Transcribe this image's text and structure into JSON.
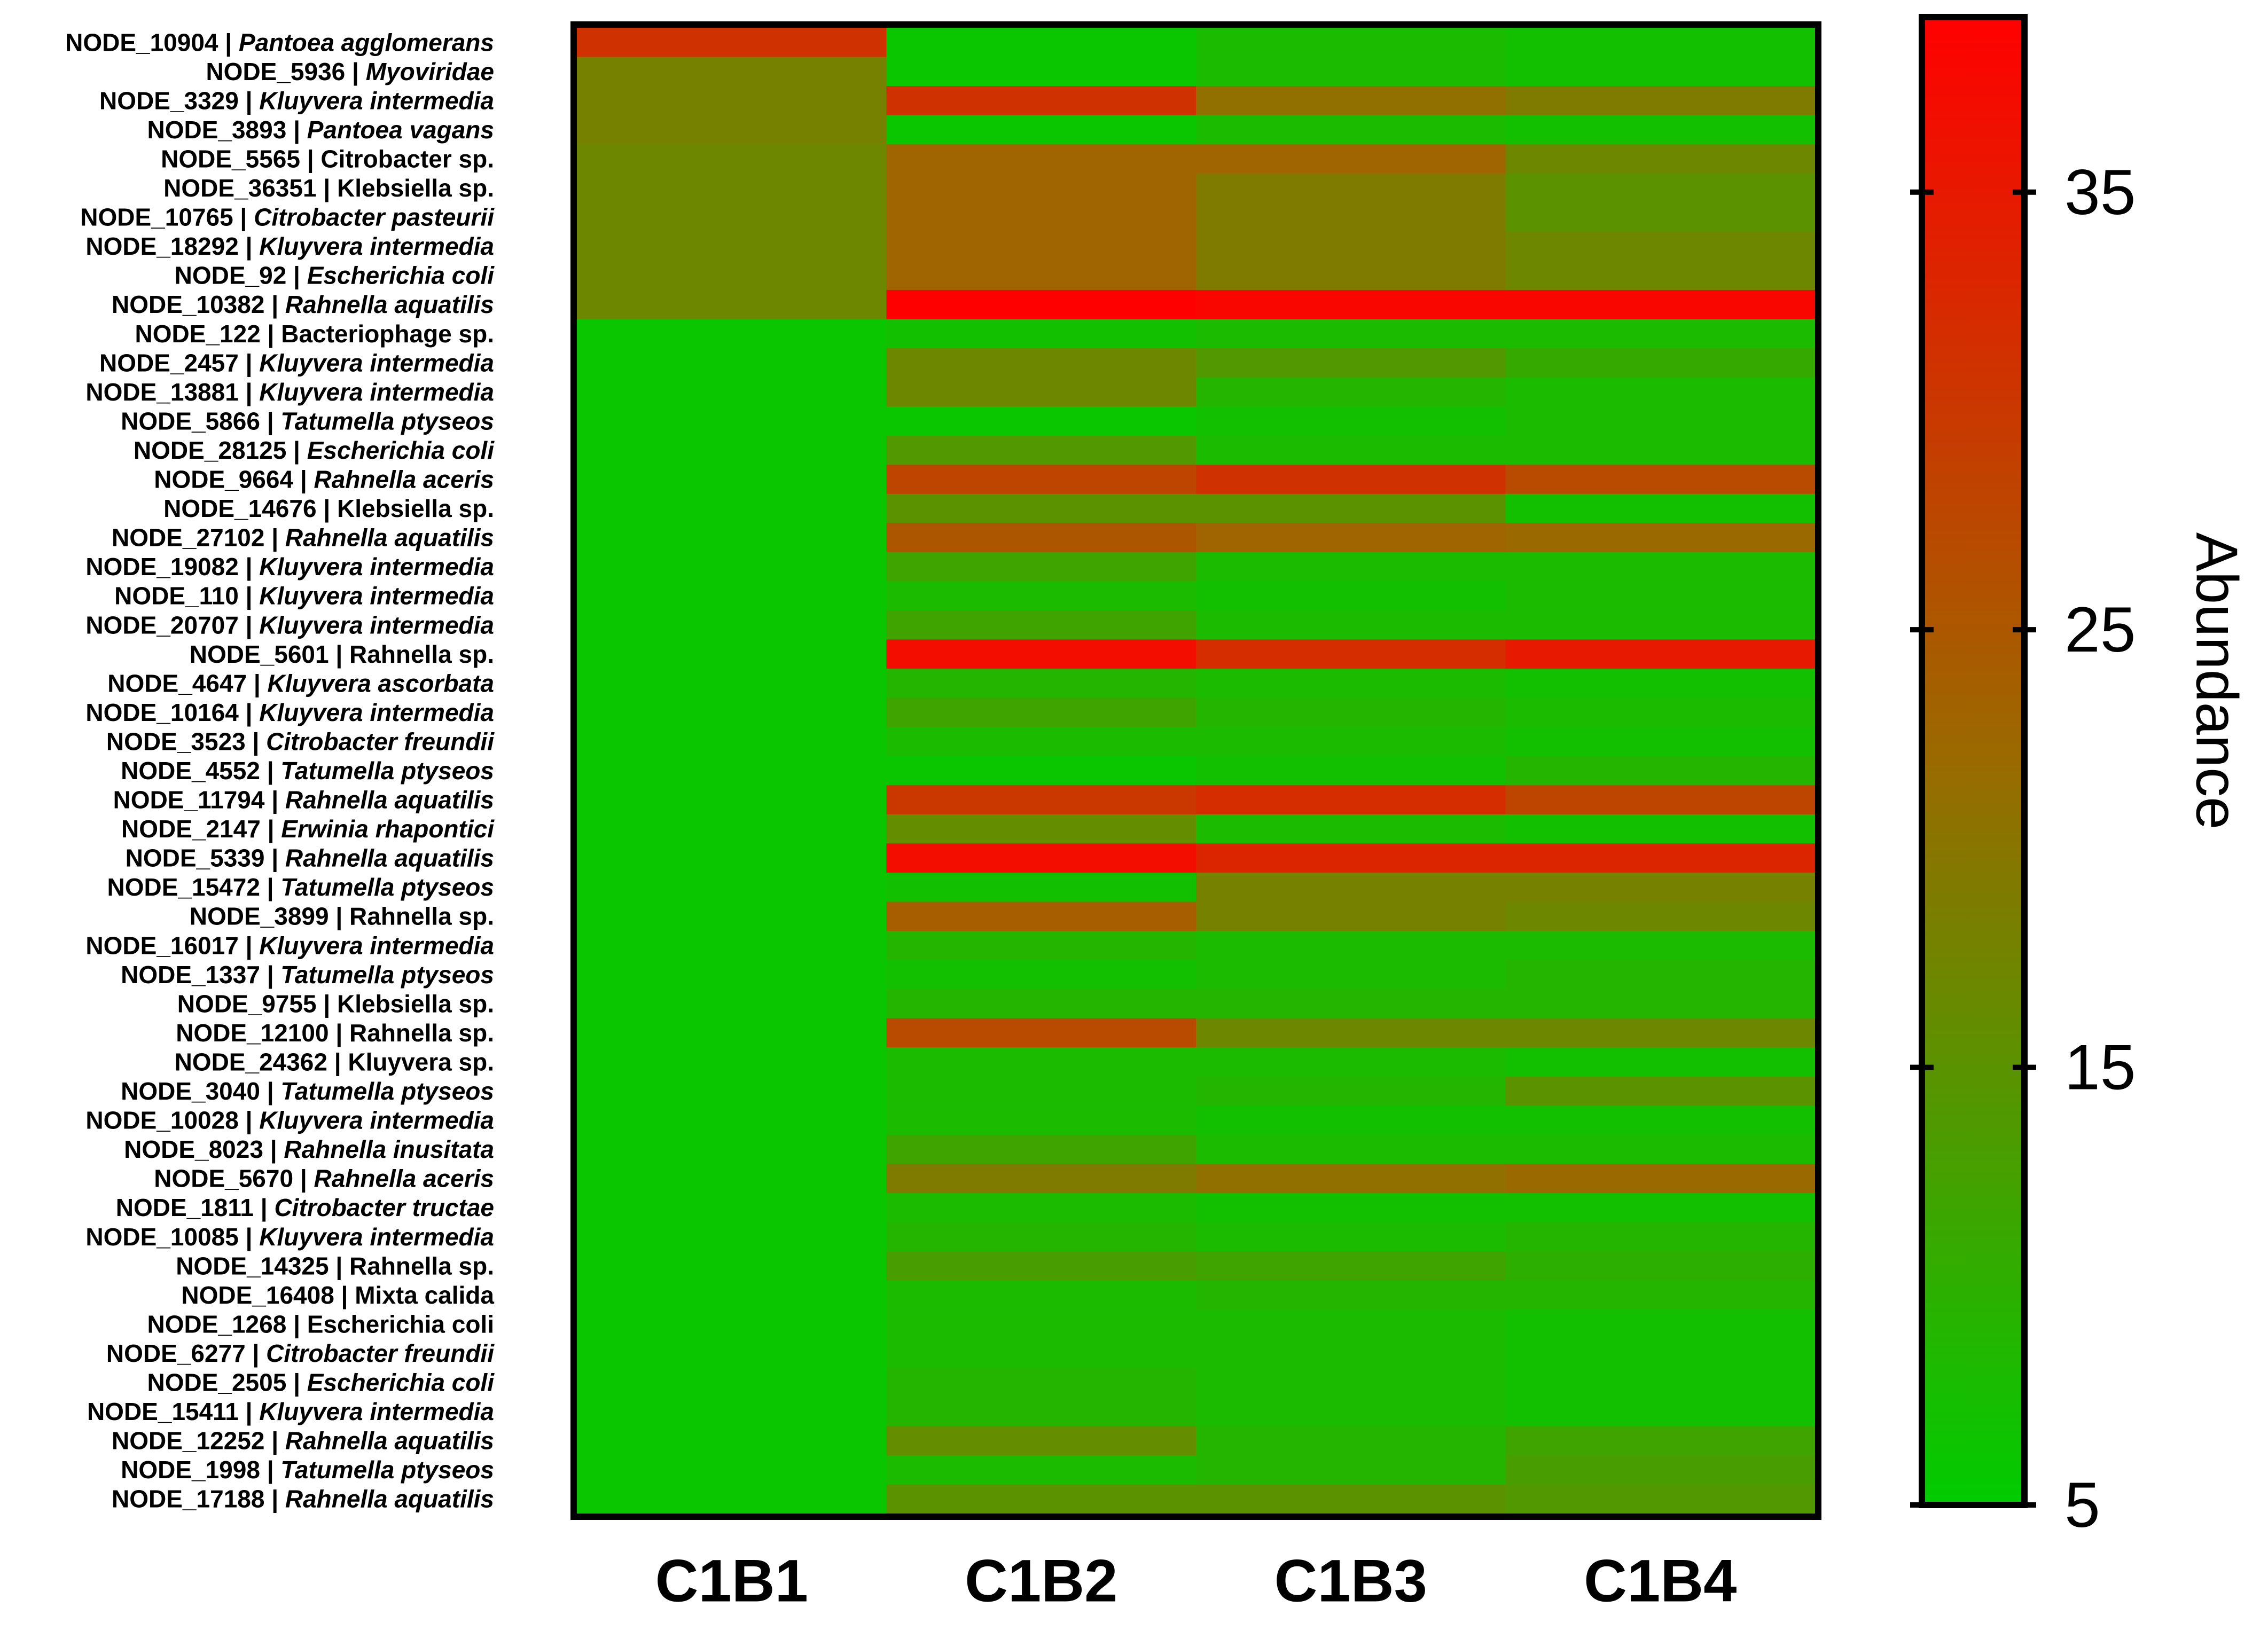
{
  "chart_data": {
    "type": "heatmap",
    "title": "",
    "colorbar": {
      "label": "Abundance",
      "range": [
        5,
        39
      ],
      "ticks": [
        5,
        15,
        25,
        35
      ],
      "colors": {
        "low": "#00cc00",
        "mid": "#9a6a00",
        "high": "#ff0000"
      }
    },
    "columns": [
      "C1B1",
      "C1B2",
      "C1B3",
      "C1B4"
    ],
    "rows": [
      {
        "node": "NODE_10904",
        "taxon": "Pantoea agglomerans",
        "italic": true,
        "values": [
          31,
          6,
          8,
          7
        ]
      },
      {
        "node": "NODE_5936",
        "taxon": "Myoviridae",
        "italic": true,
        "values": [
          18,
          6,
          8,
          7
        ]
      },
      {
        "node": "NODE_3329",
        "taxon": "Kluyvera intermedia",
        "italic": true,
        "values": [
          18,
          31,
          21,
          19
        ]
      },
      {
        "node": "NODE_3893",
        "taxon": "Pantoea vagans",
        "italic": true,
        "values": [
          18,
          6,
          8,
          7
        ]
      },
      {
        "node": "NODE_5565",
        "taxon": "Citrobacter sp.",
        "italic": false,
        "values": [
          17,
          23,
          23,
          17
        ]
      },
      {
        "node": "NODE_36351",
        "taxon": "Klebsiella sp.",
        "italic": false,
        "values": [
          17,
          23,
          19,
          15
        ]
      },
      {
        "node": "NODE_10765",
        "taxon": "Citrobacter pasteurii",
        "italic": true,
        "values": [
          17,
          23,
          19,
          15
        ]
      },
      {
        "node": "NODE_18292",
        "taxon": "Kluyvera intermedia",
        "italic": true,
        "values": [
          17,
          23,
          19,
          17
        ]
      },
      {
        "node": "NODE_92",
        "taxon": "Escherichia coli",
        "italic": true,
        "values": [
          17,
          23,
          19,
          17
        ]
      },
      {
        "node": "NODE_10382",
        "taxon": "Rahnella aquatilis",
        "italic": true,
        "values": [
          17,
          39,
          38,
          38
        ]
      },
      {
        "node": "NODE_122",
        "taxon": "Bacteriophage sp.",
        "italic": false,
        "values": [
          6,
          7,
          8,
          8
        ]
      },
      {
        "node": "NODE_2457",
        "taxon": "Kluyvera intermedia",
        "italic": true,
        "values": [
          6,
          17,
          14,
          11
        ]
      },
      {
        "node": "NODE_13881",
        "taxon": "Kluyvera intermedia",
        "italic": true,
        "values": [
          6,
          17,
          9,
          8
        ]
      },
      {
        "node": "NODE_5866",
        "taxon": "Tatumella ptyseos",
        "italic": true,
        "values": [
          6,
          6,
          7,
          8
        ]
      },
      {
        "node": "NODE_28125",
        "taxon": "Escherichia coli",
        "italic": true,
        "values": [
          6,
          14,
          8,
          8
        ]
      },
      {
        "node": "NODE_9664",
        "taxon": "Rahnella aceris",
        "italic": true,
        "values": [
          6,
          28,
          31,
          27
        ]
      },
      {
        "node": "NODE_14676",
        "taxon": "Klebsiella sp.",
        "italic": false,
        "values": [
          6,
          15,
          15,
          7
        ]
      },
      {
        "node": "NODE_27102",
        "taxon": "Rahnella aquatilis",
        "italic": true,
        "values": [
          6,
          25,
          23,
          22
        ]
      },
      {
        "node": "NODE_19082",
        "taxon": "Kluyvera intermedia",
        "italic": true,
        "values": [
          6,
          12,
          8,
          8
        ]
      },
      {
        "node": "NODE_110",
        "taxon": "Kluyvera intermedia",
        "italic": true,
        "values": [
          6,
          8,
          7,
          8
        ]
      },
      {
        "node": "NODE_20707",
        "taxon": "Kluyvera intermedia",
        "italic": true,
        "values": [
          6,
          12,
          8,
          8
        ]
      },
      {
        "node": "NODE_5601",
        "taxon": "Rahnella sp.",
        "italic": false,
        "values": [
          6,
          37,
          32,
          35
        ]
      },
      {
        "node": "NODE_4647",
        "taxon": "Kluyvera ascorbata",
        "italic": true,
        "values": [
          6,
          9,
          8,
          7
        ]
      },
      {
        "node": "NODE_10164",
        "taxon": "Kluyvera intermedia",
        "italic": true,
        "values": [
          6,
          12,
          9,
          8
        ]
      },
      {
        "node": "NODE_3523",
        "taxon": "Citrobacter freundii",
        "italic": true,
        "values": [
          6,
          8,
          8,
          7
        ]
      },
      {
        "node": "NODE_4552",
        "taxon": "Tatumella ptyseos",
        "italic": true,
        "values": [
          6,
          6,
          7,
          9
        ]
      },
      {
        "node": "NODE_11794",
        "taxon": "Rahnella aquatilis",
        "italic": true,
        "values": [
          6,
          30,
          32,
          28
        ]
      },
      {
        "node": "NODE_2147",
        "taxon": "Erwinia rhapontici",
        "italic": true,
        "values": [
          6,
          16,
          8,
          7
        ]
      },
      {
        "node": "NODE_5339",
        "taxon": "Rahnella aquatilis",
        "italic": true,
        "values": [
          6,
          37,
          33,
          33
        ]
      },
      {
        "node": "NODE_15472",
        "taxon": "Tatumella ptyseos",
        "italic": true,
        "values": [
          6,
          7,
          18,
          18
        ]
      },
      {
        "node": "NODE_3899",
        "taxon": "Rahnella sp.",
        "italic": false,
        "values": [
          6,
          24,
          18,
          17
        ]
      },
      {
        "node": "NODE_16017",
        "taxon": "Kluyvera intermedia",
        "italic": true,
        "values": [
          6,
          9,
          8,
          8
        ]
      },
      {
        "node": "NODE_1337",
        "taxon": "Tatumella ptyseos",
        "italic": true,
        "values": [
          6,
          7,
          8,
          9
        ]
      },
      {
        "node": "NODE_9755",
        "taxon": "Klebsiella sp.",
        "italic": false,
        "values": [
          6,
          9,
          9,
          9
        ]
      },
      {
        "node": "NODE_12100",
        "taxon": "Rahnella sp.",
        "italic": false,
        "values": [
          6,
          27,
          17,
          17
        ]
      },
      {
        "node": "NODE_24362",
        "taxon": "Kluyvera sp.",
        "italic": false,
        "values": [
          6,
          8,
          8,
          7
        ]
      },
      {
        "node": "NODE_3040",
        "taxon": "Tatumella ptyseos",
        "italic": true,
        "values": [
          6,
          8,
          9,
          15
        ]
      },
      {
        "node": "NODE_10028",
        "taxon": "Kluyvera intermedia",
        "italic": true,
        "values": [
          6,
          8,
          7,
          7
        ]
      },
      {
        "node": "NODE_8023",
        "taxon": "Rahnella inusitata",
        "italic": true,
        "values": [
          6,
          12,
          8,
          8
        ]
      },
      {
        "node": "NODE_5670",
        "taxon": "Rahnella aceris",
        "italic": true,
        "values": [
          6,
          19,
          21,
          22
        ]
      },
      {
        "node": "NODE_1811",
        "taxon": "Citrobacter tructae",
        "italic": true,
        "values": [
          6,
          8,
          7,
          7
        ]
      },
      {
        "node": "NODE_10085",
        "taxon": "Kluyvera intermedia",
        "italic": true,
        "values": [
          6,
          9,
          8,
          9
        ]
      },
      {
        "node": "NODE_14325",
        "taxon": "Rahnella sp.",
        "italic": false,
        "values": [
          6,
          13,
          12,
          10
        ]
      },
      {
        "node": "NODE_16408",
        "taxon": "Mixta calida",
        "italic": false,
        "values": [
          6,
          8,
          9,
          9
        ]
      },
      {
        "node": "NODE_1268",
        "taxon": "Escherichia coli",
        "italic": false,
        "values": [
          6,
          8,
          8,
          7
        ]
      },
      {
        "node": "NODE_6277",
        "taxon": "Citrobacter freundii",
        "italic": true,
        "values": [
          6,
          8,
          8,
          7
        ]
      },
      {
        "node": "NODE_2505",
        "taxon": "Escherichia coli",
        "italic": true,
        "values": [
          6,
          9,
          8,
          7
        ]
      },
      {
        "node": "NODE_15411",
        "taxon": "Kluyvera intermedia",
        "italic": true,
        "values": [
          6,
          9,
          8,
          7
        ]
      },
      {
        "node": "NODE_12252",
        "taxon": "Rahnella aquatilis",
        "italic": true,
        "values": [
          6,
          16,
          9,
          12
        ]
      },
      {
        "node": "NODE_1998",
        "taxon": "Tatumella ptyseos",
        "italic": true,
        "values": [
          6,
          8,
          9,
          13
        ]
      },
      {
        "node": "NODE_17188",
        "taxon": "Rahnella aquatilis",
        "italic": true,
        "values": [
          6,
          15,
          15,
          14
        ]
      }
    ]
  }
}
